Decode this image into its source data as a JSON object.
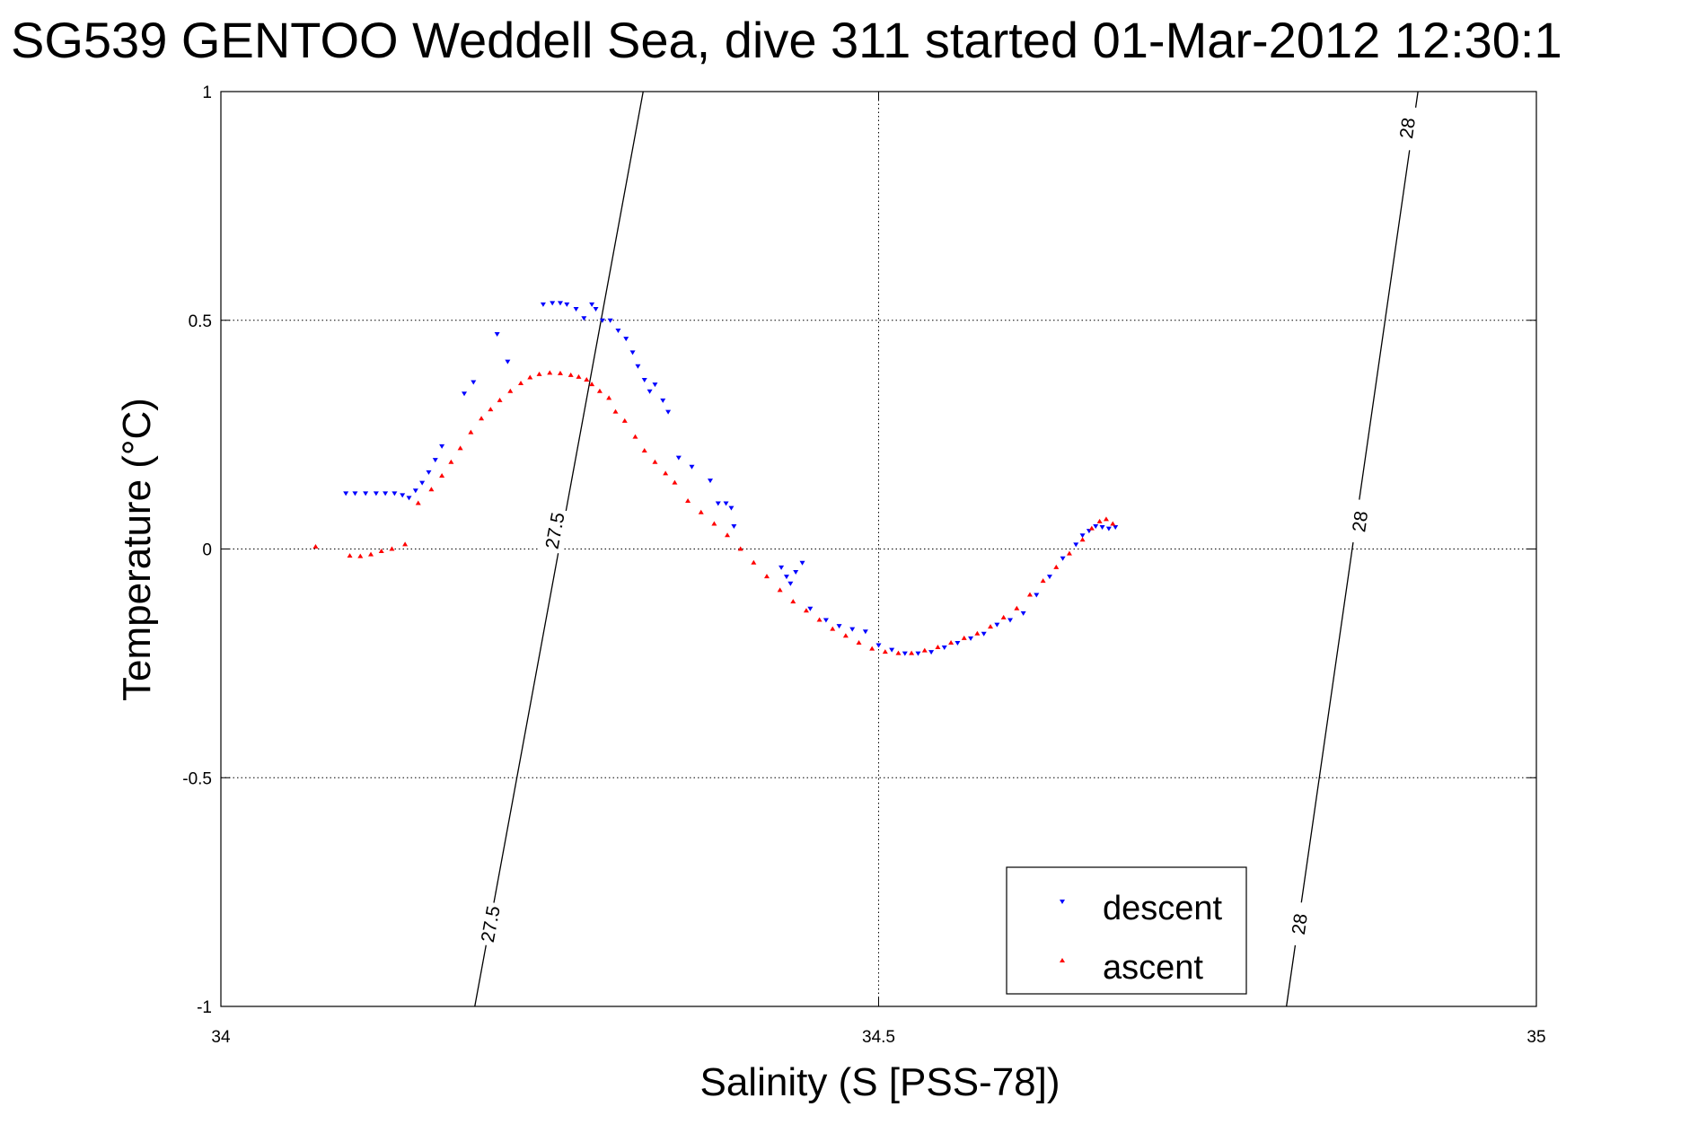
{
  "chart_data": {
    "type": "scatter",
    "title": "SG539 GENTOO Weddell Sea, dive 311 started 01-Mar-2012 12:30:1",
    "xlabel": "Salinity (S [PSS-78])",
    "ylabel": "Temperature (°C)",
    "xlim": [
      34,
      35
    ],
    "ylim": [
      -1,
      1
    ],
    "xticks": [
      34,
      34.5,
      35
    ],
    "xtick_labels": [
      "34",
      "34.5",
      "35"
    ],
    "yticks": [
      -1,
      -0.5,
      0,
      0.5,
      1
    ],
    "ytick_labels": [
      "-1",
      "-0.5",
      "0",
      "0.5",
      "1"
    ],
    "grid": true,
    "legend_position": "bottom-right",
    "density_contours": [
      {
        "level": "27.5",
        "points": [
          [
            34.193,
            -1.0
          ],
          [
            34.321,
            1.0
          ]
        ],
        "labels": [
          {
            "x": 34.205,
            "y": -0.82,
            "text": "27.5"
          },
          {
            "x": 34.254,
            "y": 0.04,
            "text": "27.5"
          }
        ]
      },
      {
        "level": "28",
        "points": [
          [
            34.81,
            -1.0
          ],
          [
            34.91,
            1.0
          ]
        ],
        "labels": [
          {
            "x": 34.82,
            "y": -0.82,
            "text": "28"
          },
          {
            "x": 34.866,
            "y": 0.06,
            "text": "28"
          },
          {
            "x": 34.902,
            "y": 0.92,
            "text": "28"
          }
        ]
      }
    ],
    "series": [
      {
        "name": "descent",
        "color": "#0000ff",
        "marker": "triangle-down",
        "points": [
          [
            34.095,
            0.122
          ],
          [
            34.102,
            0.122
          ],
          [
            34.11,
            0.122
          ],
          [
            34.118,
            0.122
          ],
          [
            34.125,
            0.122
          ],
          [
            34.132,
            0.122
          ],
          [
            34.138,
            0.118
          ],
          [
            34.143,
            0.112
          ],
          [
            34.148,
            0.128
          ],
          [
            34.153,
            0.145
          ],
          [
            34.158,
            0.168
          ],
          [
            34.163,
            0.195
          ],
          [
            34.168,
            0.225
          ],
          [
            34.185,
            0.34
          ],
          [
            34.192,
            0.365
          ],
          [
            34.21,
            0.47
          ],
          [
            34.218,
            0.41
          ],
          [
            34.245,
            0.535
          ],
          [
            34.252,
            0.538
          ],
          [
            34.258,
            0.538
          ],
          [
            34.263,
            0.535
          ],
          [
            34.27,
            0.525
          ],
          [
            34.276,
            0.505
          ],
          [
            34.282,
            0.535
          ],
          [
            34.285,
            0.525
          ],
          [
            34.29,
            0.5
          ],
          [
            34.296,
            0.5
          ],
          [
            34.302,
            0.478
          ],
          [
            34.308,
            0.46
          ],
          [
            34.313,
            0.43
          ],
          [
            34.317,
            0.4
          ],
          [
            34.322,
            0.37
          ],
          [
            34.326,
            0.345
          ],
          [
            34.33,
            0.36
          ],
          [
            34.336,
            0.325
          ],
          [
            34.34,
            0.3
          ],
          [
            34.348,
            0.2
          ],
          [
            34.358,
            0.18
          ],
          [
            34.372,
            0.15
          ],
          [
            34.378,
            0.1
          ],
          [
            34.384,
            0.1
          ],
          [
            34.388,
            0.09
          ],
          [
            34.39,
            0.05
          ],
          [
            34.426,
            -0.04
          ],
          [
            34.43,
            -0.06
          ],
          [
            34.433,
            -0.075
          ],
          [
            34.437,
            -0.05
          ],
          [
            34.442,
            -0.03
          ],
          [
            34.448,
            -0.13
          ],
          [
            34.46,
            -0.155
          ],
          [
            34.47,
            -0.168
          ],
          [
            34.48,
            -0.175
          ],
          [
            34.49,
            -0.18
          ],
          [
            34.5,
            -0.21
          ],
          [
            34.51,
            -0.22
          ],
          [
            34.52,
            -0.228
          ],
          [
            34.53,
            -0.228
          ],
          [
            34.54,
            -0.225
          ],
          [
            34.55,
            -0.215
          ],
          [
            34.56,
            -0.205
          ],
          [
            34.57,
            -0.195
          ],
          [
            34.58,
            -0.185
          ],
          [
            34.59,
            -0.165
          ],
          [
            34.6,
            -0.155
          ],
          [
            34.61,
            -0.14
          ],
          [
            34.62,
            -0.1
          ],
          [
            34.63,
            -0.06
          ],
          [
            34.64,
            -0.02
          ],
          [
            34.65,
            0.01
          ],
          [
            34.655,
            0.03
          ],
          [
            34.66,
            0.04
          ],
          [
            34.665,
            0.05
          ],
          [
            34.67,
            0.048
          ],
          [
            34.675,
            0.045
          ],
          [
            34.68,
            0.048
          ]
        ]
      },
      {
        "name": "ascent",
        "color": "#ff0000",
        "marker": "triangle-up",
        "points": [
          [
            34.072,
            0.005
          ],
          [
            34.098,
            -0.015
          ],
          [
            34.106,
            -0.016
          ],
          [
            34.114,
            -0.012
          ],
          [
            34.122,
            -0.005
          ],
          [
            34.13,
            0.0
          ],
          [
            34.14,
            0.01
          ],
          [
            34.15,
            0.1
          ],
          [
            34.16,
            0.13
          ],
          [
            34.168,
            0.16
          ],
          [
            34.175,
            0.19
          ],
          [
            34.182,
            0.22
          ],
          [
            34.19,
            0.255
          ],
          [
            34.198,
            0.285
          ],
          [
            34.205,
            0.305
          ],
          [
            34.212,
            0.325
          ],
          [
            34.22,
            0.345
          ],
          [
            34.228,
            0.362
          ],
          [
            34.235,
            0.375
          ],
          [
            34.242,
            0.382
          ],
          [
            34.25,
            0.385
          ],
          [
            34.258,
            0.384
          ],
          [
            34.266,
            0.38
          ],
          [
            34.272,
            0.376
          ],
          [
            34.278,
            0.37
          ],
          [
            34.282,
            0.36
          ],
          [
            34.288,
            0.345
          ],
          [
            34.295,
            0.33
          ],
          [
            34.3,
            0.3
          ],
          [
            34.307,
            0.28
          ],
          [
            34.315,
            0.245
          ],
          [
            34.322,
            0.215
          ],
          [
            34.33,
            0.19
          ],
          [
            34.338,
            0.165
          ],
          [
            34.345,
            0.145
          ],
          [
            34.355,
            0.105
          ],
          [
            34.365,
            0.08
          ],
          [
            34.375,
            0.055
          ],
          [
            34.385,
            0.03
          ],
          [
            34.395,
            0.0
          ],
          [
            34.405,
            -0.03
          ],
          [
            34.415,
            -0.06
          ],
          [
            34.425,
            -0.09
          ],
          [
            34.435,
            -0.115
          ],
          [
            34.445,
            -0.135
          ],
          [
            34.455,
            -0.155
          ],
          [
            34.465,
            -0.175
          ],
          [
            34.475,
            -0.19
          ],
          [
            34.485,
            -0.205
          ],
          [
            34.495,
            -0.218
          ],
          [
            34.505,
            -0.225
          ],
          [
            34.515,
            -0.228
          ],
          [
            34.525,
            -0.228
          ],
          [
            34.535,
            -0.222
          ],
          [
            34.545,
            -0.215
          ],
          [
            34.555,
            -0.205
          ],
          [
            34.565,
            -0.195
          ],
          [
            34.575,
            -0.185
          ],
          [
            34.585,
            -0.17
          ],
          [
            34.595,
            -0.15
          ],
          [
            34.605,
            -0.13
          ],
          [
            34.615,
            -0.1
          ],
          [
            34.625,
            -0.07
          ],
          [
            34.635,
            -0.04
          ],
          [
            34.645,
            -0.01
          ],
          [
            34.655,
            0.02
          ],
          [
            34.662,
            0.045
          ],
          [
            34.668,
            0.06
          ],
          [
            34.673,
            0.065
          ],
          [
            34.678,
            0.055
          ]
        ]
      }
    ]
  }
}
